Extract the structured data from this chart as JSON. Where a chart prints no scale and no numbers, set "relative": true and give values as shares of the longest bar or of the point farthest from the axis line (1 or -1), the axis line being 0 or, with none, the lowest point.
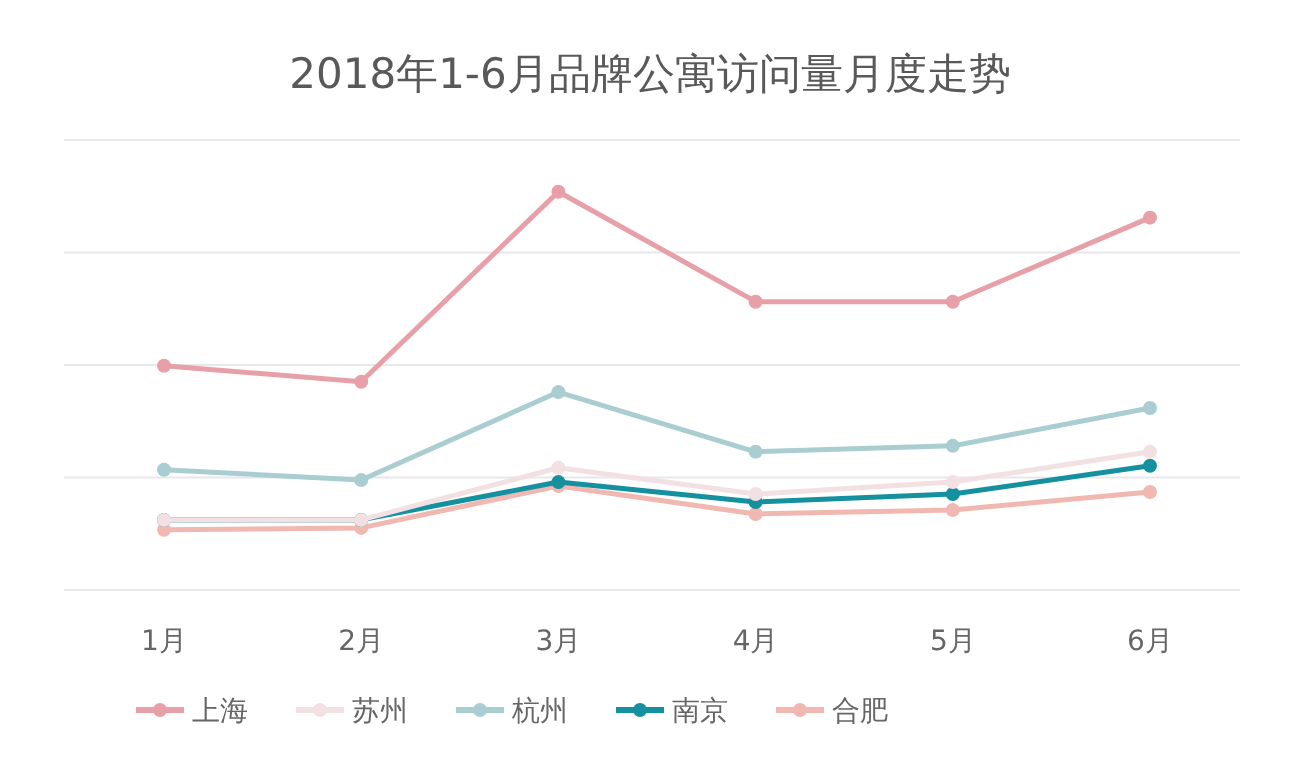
{
  "chart_data": {
    "type": "line",
    "title": "2018年1-6月品牌公寓访问量月度走势",
    "categories": [
      "1月",
      "2月",
      "3月",
      "4月",
      "5月",
      "6月"
    ],
    "relative": true,
    "grid": "y",
    "legend": "bottom",
    "marker": "circle",
    "series": [
      {
        "name": "上海",
        "color": "#e8a0a8",
        "values": [
          0.563,
          0.523,
          1,
          0.724,
          0.724,
          0.935
        ]
      },
      {
        "name": "苏州",
        "color": "#f3e0e2",
        "values": [
          0.176,
          0.176,
          0.307,
          0.241,
          0.271,
          0.347
        ]
      },
      {
        "name": "杭州",
        "color": "#a9cdd0",
        "values": [
          0.302,
          0.276,
          0.497,
          0.347,
          0.362,
          0.457
        ]
      },
      {
        "name": "南京",
        "color": "#14909f",
        "values": [
          0.176,
          0.176,
          0.271,
          0.221,
          0.241,
          0.312
        ]
      },
      {
        "name": "合肥",
        "color": "#f0b8b0",
        "values": [
          0.151,
          0.156,
          0.261,
          0.191,
          0.201,
          0.246
        ]
      }
    ]
  }
}
